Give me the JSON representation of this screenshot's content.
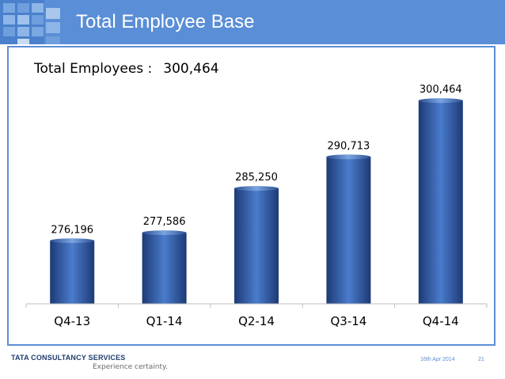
{
  "slide": {
    "title": "Total Employee Base",
    "summary_label": "Total Employees :",
    "summary_value": "300,464"
  },
  "footer": {
    "company": "TATA CONSULTANCY SERVICES",
    "tagline": "Experience certainty.",
    "date": "16th Apr 2014",
    "page": "21"
  },
  "colors": {
    "brand_blue": "#5a8ed6",
    "bar_dark": "#1d3a75",
    "bar_light": "#4a7ccc"
  },
  "chart_data": {
    "type": "bar",
    "title": "",
    "xlabel": "",
    "ylabel": "",
    "categories": [
      "Q4-13",
      "Q1-14",
      "Q2-14",
      "Q3-14",
      "Q4-14"
    ],
    "values": [
      276196,
      277586,
      285250,
      290713,
      300464
    ],
    "data_labels": [
      "276,196",
      "277,586",
      "285,250",
      "290,713",
      "300,464"
    ],
    "ylim": [
      265000,
      305000
    ],
    "grid": false,
    "legend": "none"
  }
}
